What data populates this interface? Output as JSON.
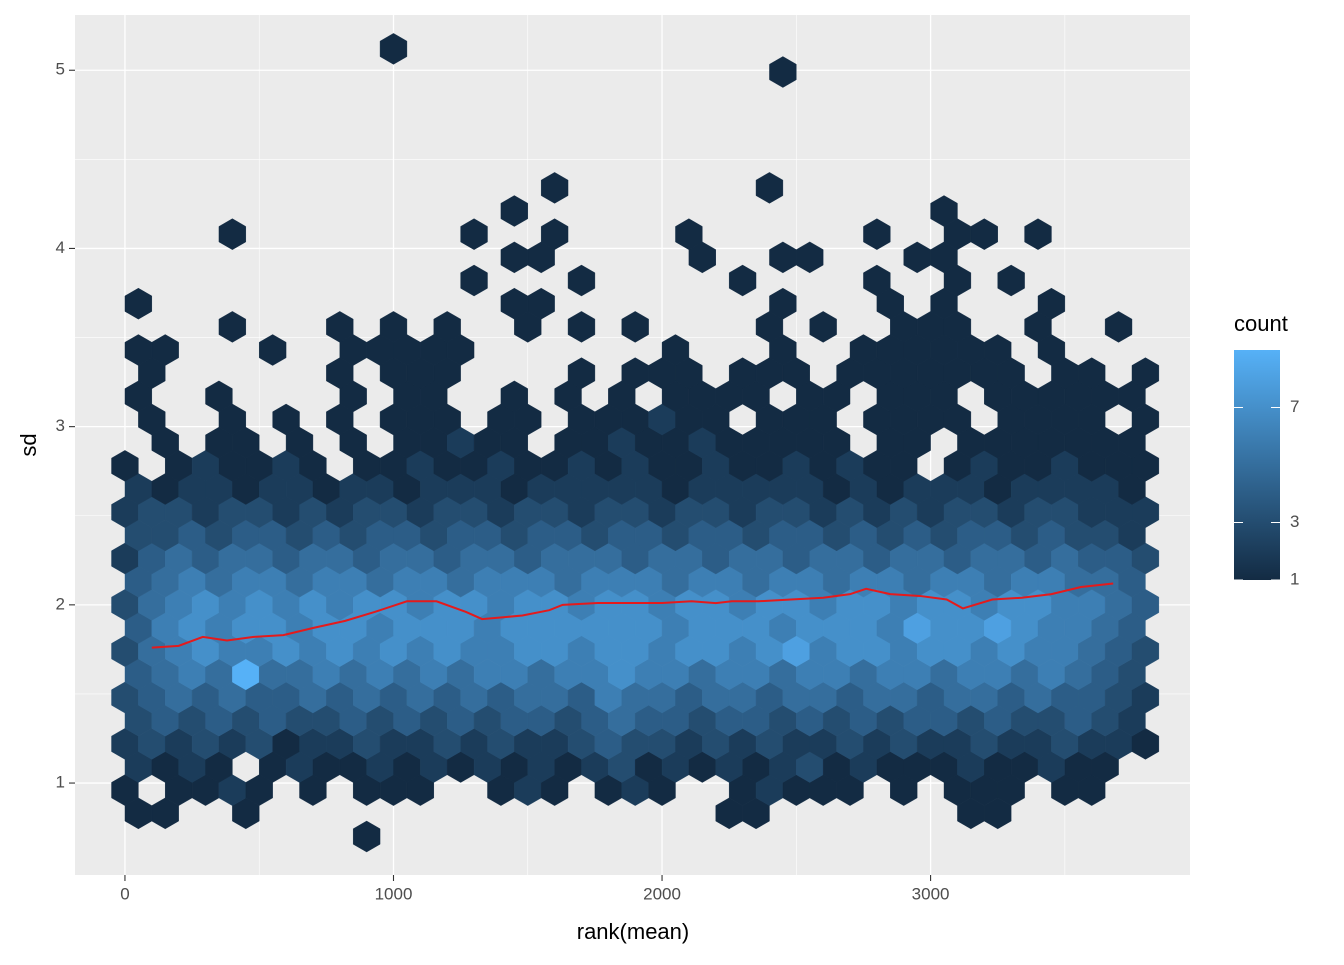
{
  "chart_data": {
    "type": "hexbin",
    "xlabel": "rank(mean)",
    "ylabel": "sd",
    "xlim": [
      -186,
      3966
    ],
    "ylim": [
      0.484,
      5.31
    ],
    "xticks": [
      0,
      1000,
      2000,
      3000
    ],
    "yticks": [
      1,
      2,
      3,
      4,
      5
    ],
    "xminor": [
      500,
      1500,
      2500,
      3500
    ],
    "yminor": [
      1.5,
      2.5,
      3.5,
      4.5
    ],
    "grid": true,
    "background": "#EBEBEB",
    "binwidth": [
      100,
      0.13
    ],
    "legend": {
      "title": "count",
      "position": "right",
      "low_color": "#132B43",
      "high_color": "#56B1F7",
      "count_lim": [
        1,
        9
      ],
      "ticks": [
        1,
        3,
        7
      ]
    },
    "hex_rows": [
      {
        "y": 0.7,
        "x0": 900,
        "counts": [
          1
        ]
      },
      {
        "y": 0.83,
        "x0": 50,
        "counts": [
          1,
          1,
          null,
          null,
          1,
          null,
          null,
          null,
          null,
          null,
          null,
          null,
          null,
          null,
          null,
          null,
          null,
          null,
          null,
          null,
          null,
          null,
          1,
          1,
          null,
          null,
          null,
          null,
          null,
          null,
          null,
          1,
          1
        ]
      },
      {
        "y": 0.96,
        "x0": 0,
        "counts": [
          1,
          null,
          1,
          1,
          2,
          1,
          null,
          1,
          null,
          1,
          1,
          1,
          null,
          null,
          1,
          2,
          1,
          null,
          1,
          2,
          1,
          null,
          null,
          1,
          2,
          1,
          1,
          1,
          null,
          1,
          null,
          1,
          1,
          1,
          null,
          1,
          1,
          null,
          null
        ]
      },
      {
        "y": 1.09,
        "x0": 50,
        "counts": [
          2,
          1,
          2,
          1,
          null,
          1,
          2,
          1,
          1,
          2,
          1,
          2,
          1,
          2,
          1,
          2,
          1,
          2,
          3,
          1,
          2,
          1,
          2,
          1,
          2,
          3,
          1,
          2,
          1,
          1,
          1,
          2,
          1,
          1,
          2,
          1,
          1,
          null
        ]
      },
      {
        "y": 1.22,
        "x0": 0,
        "counts": [
          2,
          3,
          2,
          3,
          2,
          3,
          1,
          2,
          2,
          3,
          2,
          2,
          3,
          2,
          3,
          2,
          2,
          3,
          4,
          3,
          3,
          2,
          3,
          2,
          3,
          2,
          2,
          3,
          2,
          3,
          2,
          2,
          3,
          2,
          2,
          3,
          2,
          2,
          1
        ]
      },
      {
        "y": 1.35,
        "x0": 50,
        "counts": [
          3,
          4,
          3,
          4,
          3,
          4,
          3,
          3,
          4,
          3,
          4,
          3,
          4,
          3,
          4,
          4,
          3,
          4,
          5,
          4,
          4,
          3,
          4,
          4,
          3,
          4,
          3,
          4,
          3,
          4,
          4,
          3,
          4,
          3,
          3,
          4,
          3,
          2
        ]
      },
      {
        "y": 1.48,
        "x0": 0,
        "counts": [
          3,
          4,
          5,
          4,
          5,
          4,
          4,
          5,
          4,
          5,
          4,
          5,
          4,
          5,
          4,
          5,
          5,
          4,
          6,
          5,
          5,
          4,
          5,
          5,
          4,
          5,
          5,
          4,
          5,
          5,
          4,
          5,
          5,
          4,
          5,
          4,
          4,
          3,
          2
        ]
      },
      {
        "y": 1.61,
        "x0": 50,
        "counts": [
          4,
          5,
          6,
          5,
          9,
          5,
          5,
          6,
          5,
          6,
          5,
          6,
          5,
          6,
          6,
          5,
          6,
          6,
          7,
          6,
          6,
          5,
          6,
          6,
          5,
          6,
          6,
          5,
          6,
          6,
          5,
          6,
          6,
          5,
          6,
          5,
          4,
          3
        ]
      },
      {
        "y": 1.74,
        "x0": 0,
        "counts": [
          3,
          5,
          6,
          7,
          6,
          6,
          7,
          6,
          7,
          6,
          7,
          6,
          7,
          6,
          6,
          7,
          7,
          6,
          7,
          7,
          6,
          7,
          7,
          6,
          7,
          8,
          6,
          7,
          7,
          6,
          7,
          7,
          6,
          7,
          6,
          6,
          5,
          4,
          3
        ]
      },
      {
        "y": 1.87,
        "x0": 50,
        "counts": [
          4,
          6,
          7,
          6,
          7,
          7,
          6,
          7,
          7,
          6,
          7,
          7,
          7,
          6,
          7,
          7,
          7,
          7,
          7,
          7,
          6,
          7,
          7,
          7,
          6,
          7,
          7,
          7,
          6,
          8,
          7,
          7,
          8,
          7,
          6,
          6,
          5,
          4
        ]
      },
      {
        "y": 2.0,
        "x0": 0,
        "counts": [
          3,
          5,
          6,
          7,
          6,
          7,
          6,
          7,
          6,
          7,
          7,
          6,
          7,
          7,
          6,
          7,
          7,
          6,
          7,
          7,
          6,
          7,
          7,
          6,
          7,
          7,
          6,
          7,
          7,
          6,
          7,
          7,
          6,
          7,
          7,
          6,
          6,
          5,
          4
        ]
      },
      {
        "y": 2.13,
        "x0": 50,
        "counts": [
          4,
          5,
          6,
          5,
          6,
          6,
          5,
          6,
          6,
          5,
          6,
          6,
          5,
          6,
          6,
          6,
          5,
          6,
          6,
          6,
          5,
          6,
          6,
          5,
          6,
          6,
          5,
          6,
          6,
          5,
          6,
          6,
          5,
          6,
          6,
          5,
          5,
          4
        ]
      },
      {
        "y": 2.26,
        "x0": 0,
        "counts": [
          2,
          4,
          5,
          4,
          5,
          5,
          4,
          5,
          5,
          4,
          5,
          5,
          4,
          5,
          5,
          4,
          5,
          5,
          5,
          4,
          5,
          5,
          4,
          5,
          5,
          4,
          5,
          5,
          4,
          5,
          5,
          4,
          5,
          5,
          4,
          5,
          4,
          4,
          3
        ]
      },
      {
        "y": 2.39,
        "x0": 50,
        "counts": [
          3,
          3,
          4,
          3,
          4,
          4,
          3,
          4,
          3,
          4,
          4,
          3,
          4,
          4,
          3,
          4,
          4,
          3,
          4,
          4,
          3,
          4,
          4,
          3,
          4,
          4,
          3,
          4,
          3,
          4,
          3,
          4,
          4,
          3,
          4,
          3,
          3,
          2
        ]
      },
      {
        "y": 2.52,
        "x0": 0,
        "counts": [
          2,
          3,
          3,
          2,
          3,
          3,
          2,
          3,
          2,
          3,
          3,
          2,
          3,
          3,
          2,
          3,
          3,
          2,
          3,
          3,
          2,
          3,
          3,
          2,
          3,
          3,
          2,
          3,
          2,
          3,
          2,
          3,
          3,
          2,
          3,
          3,
          2,
          2,
          2
        ]
      },
      {
        "y": 2.65,
        "x0": 50,
        "counts": [
          2,
          1,
          2,
          2,
          1,
          2,
          2,
          1,
          2,
          2,
          1,
          2,
          2,
          2,
          1,
          2,
          2,
          2,
          2,
          2,
          1,
          2,
          2,
          2,
          2,
          2,
          1,
          2,
          1,
          2,
          2,
          2,
          1,
          2,
          2,
          2,
          2,
          1
        ]
      },
      {
        "y": 2.78,
        "x0": 0,
        "counts": [
          1,
          null,
          1,
          2,
          1,
          1,
          2,
          1,
          null,
          1,
          1,
          2,
          1,
          1,
          2,
          1,
          1,
          2,
          1,
          2,
          1,
          1,
          2,
          1,
          1,
          2,
          1,
          2,
          1,
          1,
          null,
          1,
          2,
          1,
          1,
          2,
          1,
          1,
          1
        ]
      },
      {
        "y": 2.91,
        "x0": 50,
        "counts": [
          null,
          1,
          null,
          1,
          1,
          null,
          1,
          null,
          1,
          null,
          1,
          1,
          2,
          1,
          1,
          null,
          1,
          1,
          2,
          1,
          1,
          2,
          1,
          1,
          1,
          1,
          1,
          null,
          1,
          1,
          null,
          1,
          1,
          1,
          1,
          1,
          1,
          1
        ]
      },
      {
        "y": 3.04,
        "x0": 0,
        "counts": [
          null,
          1,
          null,
          null,
          1,
          null,
          1,
          null,
          1,
          null,
          1,
          1,
          1,
          null,
          1,
          1,
          null,
          1,
          1,
          1,
          2,
          1,
          1,
          null,
          1,
          1,
          1,
          null,
          1,
          1,
          1,
          1,
          null,
          1,
          1,
          1,
          1,
          null,
          1
        ]
      },
      {
        "y": 3.17,
        "x0": 50,
        "counts": [
          1,
          null,
          null,
          1,
          null,
          null,
          null,
          null,
          1,
          null,
          1,
          1,
          null,
          null,
          1,
          null,
          1,
          null,
          1,
          null,
          1,
          1,
          1,
          1,
          null,
          1,
          1,
          null,
          1,
          1,
          1,
          null,
          1,
          1,
          1,
          1,
          1,
          1
        ]
      },
      {
        "y": 3.3,
        "x0": 0,
        "counts": [
          null,
          1,
          null,
          null,
          null,
          null,
          null,
          null,
          1,
          null,
          1,
          1,
          1,
          null,
          null,
          null,
          null,
          1,
          null,
          1,
          1,
          1,
          null,
          1,
          1,
          1,
          null,
          1,
          1,
          1,
          1,
          1,
          1,
          1,
          null,
          1,
          1,
          null,
          1
        ]
      },
      {
        "y": 3.43,
        "x0": 50,
        "counts": [
          1,
          1,
          null,
          null,
          null,
          1,
          null,
          null,
          1,
          1,
          1,
          1,
          1,
          null,
          null,
          null,
          null,
          null,
          null,
          null,
          1,
          null,
          null,
          null,
          1,
          null,
          null,
          1,
          1,
          1,
          1,
          1,
          1,
          null,
          1,
          null,
          null,
          null
        ]
      },
      {
        "y": 3.56,
        "x0": 0,
        "counts": [
          null,
          null,
          null,
          null,
          1,
          null,
          null,
          null,
          1,
          null,
          1,
          null,
          1,
          null,
          null,
          1,
          null,
          1,
          null,
          1,
          null,
          null,
          null,
          null,
          1,
          null,
          1,
          null,
          null,
          1,
          1,
          1,
          null,
          null,
          1,
          null,
          null,
          1
        ]
      },
      {
        "y": 3.69,
        "x0": 50,
        "counts": [
          1
        ]
      },
      {
        "y": 3.69,
        "x0": 1450,
        "counts": [
          1,
          1
        ]
      },
      {
        "y": 3.69,
        "x0": 2450,
        "counts": [
          1
        ]
      },
      {
        "y": 3.69,
        "x0": 2850,
        "counts": [
          1
        ]
      },
      {
        "y": 3.69,
        "x0": 3050,
        "counts": [
          1
        ]
      },
      {
        "y": 3.69,
        "x0": 3450,
        "counts": [
          1
        ]
      },
      {
        "y": 3.82,
        "x0": 1300,
        "counts": [
          1
        ]
      },
      {
        "y": 3.82,
        "x0": 1700,
        "counts": [
          1
        ]
      },
      {
        "y": 3.82,
        "x0": 2300,
        "counts": [
          1
        ]
      },
      {
        "y": 3.82,
        "x0": 2800,
        "counts": [
          1
        ]
      },
      {
        "y": 3.82,
        "x0": 3100,
        "counts": [
          1
        ]
      },
      {
        "y": 3.82,
        "x0": 3300,
        "counts": [
          1
        ]
      },
      {
        "y": 3.95,
        "x0": 1450,
        "counts": [
          1,
          1
        ]
      },
      {
        "y": 3.95,
        "x0": 2150,
        "counts": [
          1
        ]
      },
      {
        "y": 3.95,
        "x0": 2450,
        "counts": [
          1,
          1
        ]
      },
      {
        "y": 3.95,
        "x0": 2950,
        "counts": [
          1
        ]
      },
      {
        "y": 3.95,
        "x0": 3050,
        "counts": [
          1
        ]
      },
      {
        "y": 4.08,
        "x0": 400,
        "counts": [
          1
        ]
      },
      {
        "y": 4.08,
        "x0": 1300,
        "counts": [
          1
        ]
      },
      {
        "y": 4.08,
        "x0": 1600,
        "counts": [
          1
        ]
      },
      {
        "y": 4.08,
        "x0": 2100,
        "counts": [
          1
        ]
      },
      {
        "y": 4.08,
        "x0": 2800,
        "counts": [
          1
        ]
      },
      {
        "y": 4.08,
        "x0": 3100,
        "counts": [
          1
        ]
      },
      {
        "y": 4.08,
        "x0": 3200,
        "counts": [
          1
        ]
      },
      {
        "y": 4.08,
        "x0": 3400,
        "counts": [
          1
        ]
      },
      {
        "y": 4.21,
        "x0": 1450,
        "counts": [
          1
        ]
      },
      {
        "y": 4.21,
        "x0": 3050,
        "counts": [
          1
        ]
      },
      {
        "y": 4.34,
        "x0": 1600,
        "counts": [
          1
        ]
      },
      {
        "y": 4.34,
        "x0": 2400,
        "counts": [
          1
        ]
      },
      {
        "y": 4.99,
        "x0": 2450,
        "counts": [
          1
        ]
      },
      {
        "y": 5.12,
        "x0": 1000,
        "counts": [
          1
        ]
      }
    ],
    "smooth": {
      "color": "#E41A1C",
      "x": [
        100,
        200,
        290,
        380,
        480,
        590,
        700,
        820,
        930,
        1050,
        1160,
        1270,
        1330,
        1480,
        1580,
        1630,
        1760,
        1880,
        2000,
        2110,
        2200,
        2260,
        2360,
        2480,
        2600,
        2700,
        2760,
        2850,
        2960,
        3060,
        3120,
        3230,
        3340,
        3450,
        3560,
        3680
      ],
      "y": [
        1.76,
        1.77,
        1.82,
        1.8,
        1.82,
        1.83,
        1.87,
        1.91,
        1.96,
        2.02,
        2.02,
        1.96,
        1.92,
        1.94,
        1.97,
        2.0,
        2.01,
        2.01,
        2.01,
        2.02,
        2.01,
        2.02,
        2.02,
        2.03,
        2.04,
        2.06,
        2.09,
        2.06,
        2.05,
        2.03,
        1.98,
        2.03,
        2.04,
        2.06,
        2.1,
        2.12
      ]
    }
  }
}
